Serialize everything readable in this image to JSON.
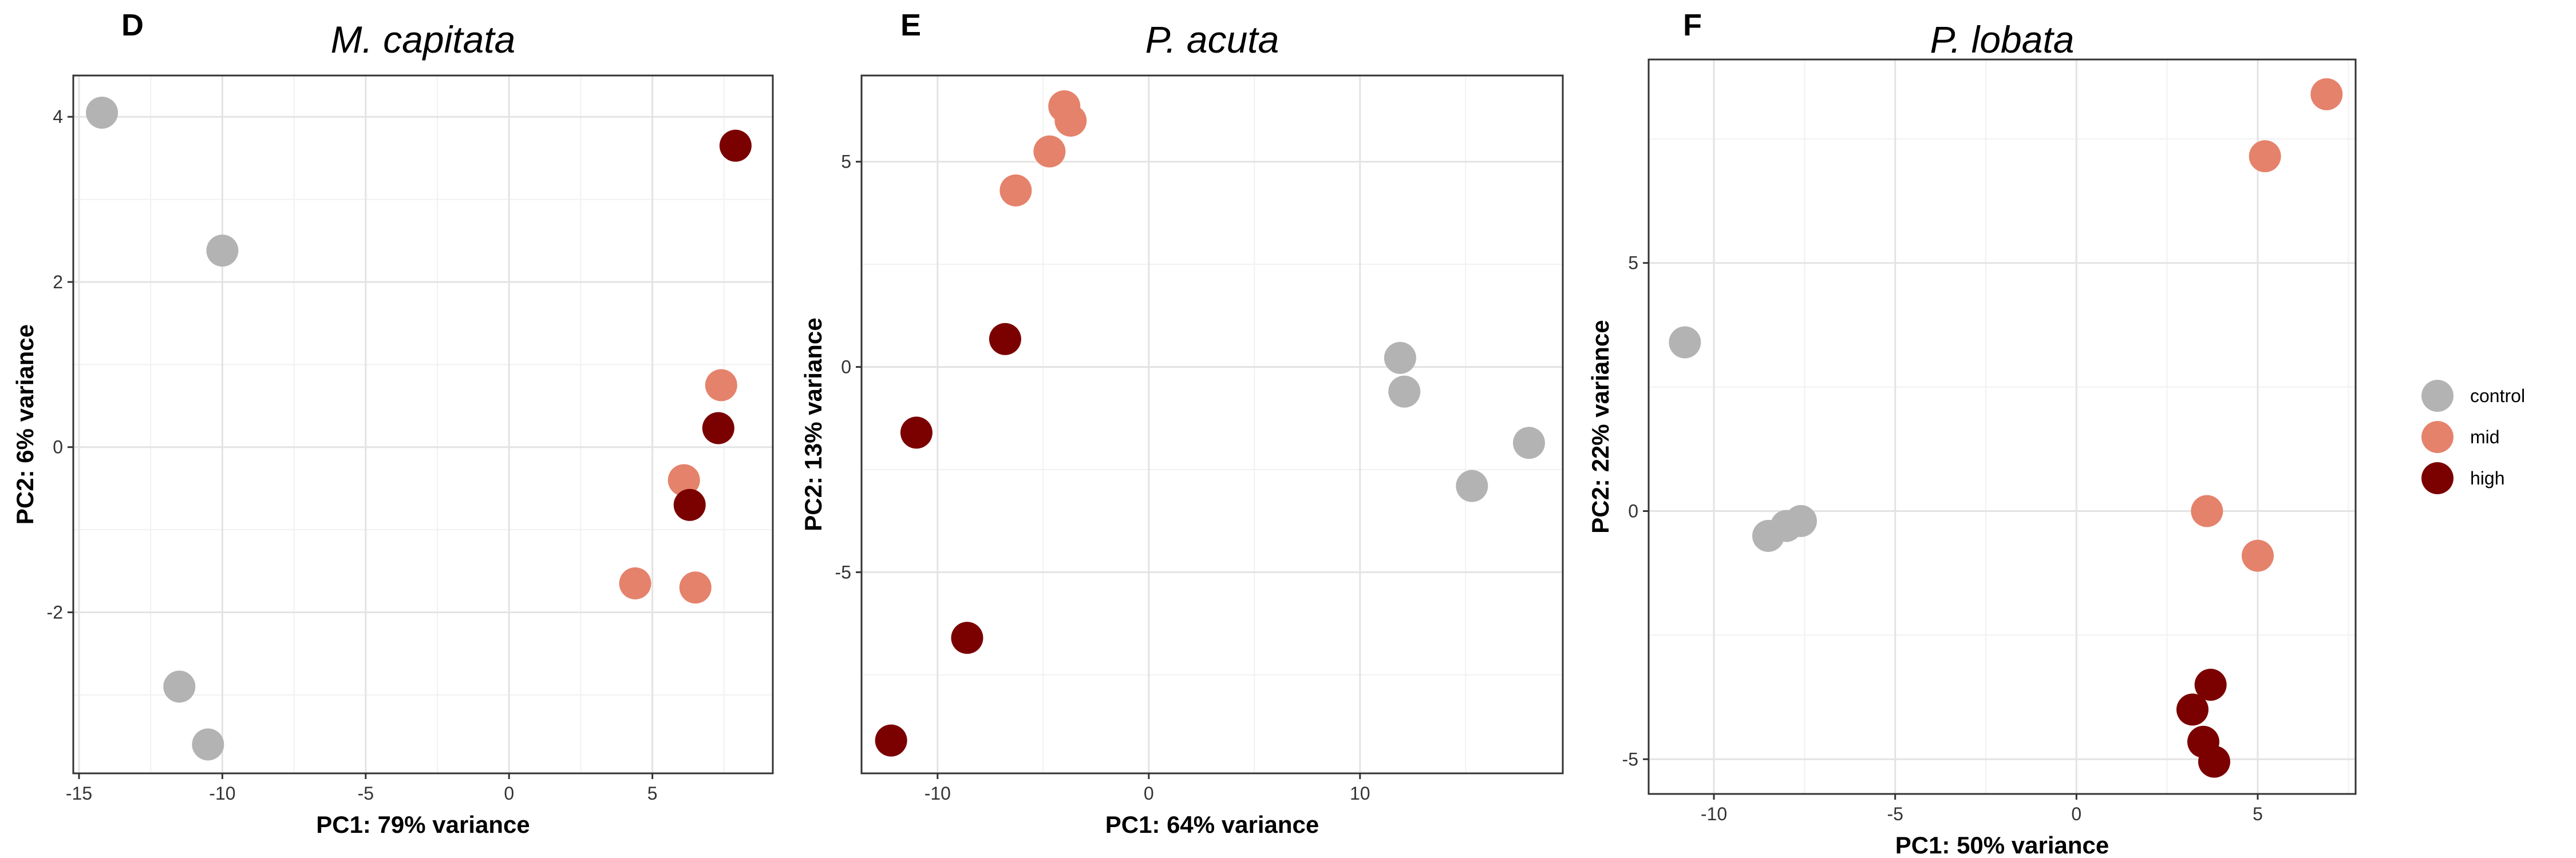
{
  "colors": {
    "control": "#b3b3b3",
    "mid": "#e5826b",
    "high": "#7b0000",
    "grid_major": "#e3e3e3",
    "grid_minor": "#f1f1f1",
    "border": "#333333"
  },
  "legend": {
    "placement": "right",
    "entries": [
      {
        "key": "control",
        "label": "control"
      },
      {
        "key": "mid",
        "label": "mid"
      },
      {
        "key": "high",
        "label": "high"
      }
    ]
  },
  "chart_data": [
    {
      "type": "scatter",
      "panel_label": "D",
      "title": "M. capitata",
      "xlabel": "PC1: 79% variance",
      "ylabel": "PC2: 6% variance",
      "xlim": [
        -15.2,
        9.2
      ],
      "ylim": [
        -3.95,
        4.5
      ],
      "xticks": [
        -15,
        -10,
        -5,
        0,
        5
      ],
      "xtick_labels": [
        "-15",
        "-10",
        "-5",
        "0",
        "5"
      ],
      "yticks": [
        -2,
        0,
        2,
        4
      ],
      "ytick_labels": [
        "-2",
        "0",
        "2",
        "4"
      ],
      "grid": true,
      "series": [
        {
          "name": "control",
          "points": [
            [
              -14.2,
              4.05
            ],
            [
              -10.0,
              2.38
            ],
            [
              -11.5,
              -2.9
            ],
            [
              -10.5,
              -3.6
            ]
          ]
        },
        {
          "name": "mid",
          "points": [
            [
              7.4,
              0.75
            ],
            [
              6.1,
              -0.4
            ],
            [
              4.4,
              -1.65
            ],
            [
              6.5,
              -1.7
            ]
          ]
        },
        {
          "name": "high",
          "points": [
            [
              7.9,
              3.65
            ],
            [
              7.3,
              0.23
            ],
            [
              6.3,
              -0.7
            ]
          ]
        }
      ]
    },
    {
      "type": "scatter",
      "panel_label": "E",
      "title": "P. acuta",
      "xlabel": "PC1: 64% variance",
      "ylabel": "PC2: 13% variance",
      "xlim": [
        -13.6,
        19.6
      ],
      "ylim": [
        -9.9,
        7.1
      ],
      "xticks": [
        -10,
        0,
        10
      ],
      "xtick_labels": [
        "-10",
        "0",
        "10"
      ],
      "yticks": [
        -5,
        0,
        5
      ],
      "ytick_labels": [
        "-5",
        "0",
        "5"
      ],
      "grid": true,
      "series": [
        {
          "name": "control",
          "points": [
            [
              11.9,
              0.22
            ],
            [
              12.1,
              -0.6
            ],
            [
              18.0,
              -1.85
            ],
            [
              15.3,
              -2.9
            ]
          ]
        },
        {
          "name": "mid",
          "points": [
            [
              -4.0,
              6.35
            ],
            [
              -3.7,
              6.0
            ],
            [
              -4.7,
              5.25
            ],
            [
              -6.3,
              4.3
            ]
          ]
        },
        {
          "name": "high",
          "points": [
            [
              -6.8,
              0.68
            ],
            [
              -11.0,
              -1.6
            ],
            [
              -8.6,
              -6.6
            ],
            [
              -12.2,
              -9.1
            ]
          ]
        }
      ]
    },
    {
      "type": "scatter",
      "panel_label": "F",
      "title": "P. lobata",
      "xlabel": "PC1: 50% variance",
      "ylabel": "PC2: 22% variance",
      "xlim": [
        -11.8,
        7.7
      ],
      "ylim": [
        -5.7,
        9.1
      ],
      "xticks": [
        -10,
        -5,
        0,
        5
      ],
      "xtick_labels": [
        "-10",
        "-5",
        "0",
        "5"
      ],
      "yticks": [
        -5,
        0,
        5
      ],
      "ytick_labels": [
        "-5",
        "0",
        "5"
      ],
      "grid": true,
      "series": [
        {
          "name": "control",
          "points": [
            [
              -10.8,
              3.4
            ],
            [
              -7.6,
              -0.2
            ],
            [
              -8.0,
              -0.3
            ],
            [
              -8.5,
              -0.5
            ]
          ]
        },
        {
          "name": "mid",
          "points": [
            [
              6.9,
              8.4
            ],
            [
              5.2,
              7.15
            ],
            [
              3.6,
              0.0
            ],
            [
              5.0,
              -0.9
            ]
          ]
        },
        {
          "name": "high",
          "points": [
            [
              3.7,
              -3.5
            ],
            [
              3.2,
              -4.0
            ],
            [
              3.5,
              -4.65
            ],
            [
              3.8,
              -5.05
            ]
          ]
        }
      ]
    }
  ]
}
